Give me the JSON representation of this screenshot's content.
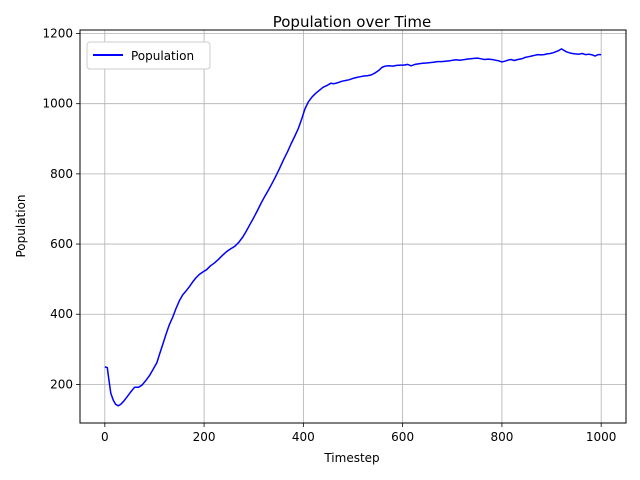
{
  "chart_data": {
    "type": "line",
    "title": "Population over Time",
    "xlabel": "Timestep",
    "ylabel": "Population",
    "xlim": [
      -50,
      1050
    ],
    "ylim": [
      90,
      1210
    ],
    "xticks": [
      0,
      200,
      400,
      600,
      800,
      1000
    ],
    "yticks": [
      200,
      400,
      600,
      800,
      1000,
      1200
    ],
    "grid": true,
    "legend_position": "top-left",
    "series": [
      {
        "name": "Population",
        "color": "#0000ff",
        "points": [
          [
            0,
            250
          ],
          [
            5,
            248
          ],
          [
            8,
            215
          ],
          [
            12,
            175
          ],
          [
            17,
            155
          ],
          [
            22,
            143
          ],
          [
            27,
            139
          ],
          [
            32,
            143
          ],
          [
            38,
            152
          ],
          [
            45,
            165
          ],
          [
            52,
            178
          ],
          [
            60,
            192
          ],
          [
            68,
            192
          ],
          [
            75,
            198
          ],
          [
            82,
            210
          ],
          [
            90,
            225
          ],
          [
            98,
            245
          ],
          [
            105,
            262
          ],
          [
            110,
            285
          ],
          [
            117,
            315
          ],
          [
            123,
            342
          ],
          [
            130,
            370
          ],
          [
            137,
            392
          ],
          [
            143,
            415
          ],
          [
            150,
            438
          ],
          [
            157,
            455
          ],
          [
            163,
            465
          ],
          [
            170,
            478
          ],
          [
            177,
            492
          ],
          [
            183,
            503
          ],
          [
            190,
            513
          ],
          [
            197,
            520
          ],
          [
            205,
            527
          ],
          [
            213,
            538
          ],
          [
            220,
            545
          ],
          [
            228,
            555
          ],
          [
            237,
            568
          ],
          [
            245,
            578
          ],
          [
            253,
            586
          ],
          [
            262,
            594
          ],
          [
            270,
            605
          ],
          [
            278,
            620
          ],
          [
            285,
            637
          ],
          [
            292,
            655
          ],
          [
            300,
            675
          ],
          [
            308,
            697
          ],
          [
            315,
            717
          ],
          [
            322,
            735
          ],
          [
            330,
            755
          ],
          [
            337,
            773
          ],
          [
            345,
            795
          ],
          [
            352,
            815
          ],
          [
            360,
            840
          ],
          [
            368,
            863
          ],
          [
            375,
            885
          ],
          [
            382,
            905
          ],
          [
            390,
            930
          ],
          [
            397,
            958
          ],
          [
            403,
            985
          ],
          [
            410,
            1005
          ],
          [
            418,
            1020
          ],
          [
            425,
            1030
          ],
          [
            432,
            1038
          ],
          [
            440,
            1047
          ],
          [
            448,
            1052
          ],
          [
            455,
            1058
          ],
          [
            462,
            1057
          ],
          [
            470,
            1060
          ],
          [
            478,
            1064
          ],
          [
            485,
            1066
          ],
          [
            492,
            1068
          ],
          [
            500,
            1072
          ],
          [
            508,
            1075
          ],
          [
            515,
            1077
          ],
          [
            522,
            1079
          ],
          [
            530,
            1080
          ],
          [
            537,
            1082
          ],
          [
            545,
            1088
          ],
          [
            552,
            1095
          ],
          [
            558,
            1103
          ],
          [
            565,
            1107
          ],
          [
            572,
            1108
          ],
          [
            580,
            1107
          ],
          [
            588,
            1109
          ],
          [
            596,
            1110
          ],
          [
            603,
            1110
          ],
          [
            610,
            1112
          ],
          [
            617,
            1108
          ],
          [
            625,
            1112
          ],
          [
            633,
            1114
          ],
          [
            640,
            1115
          ],
          [
            648,
            1116
          ],
          [
            655,
            1117
          ],
          [
            662,
            1118
          ],
          [
            670,
            1120
          ],
          [
            678,
            1120
          ],
          [
            686,
            1121
          ],
          [
            694,
            1122
          ],
          [
            701,
            1124
          ],
          [
            708,
            1125
          ],
          [
            715,
            1124
          ],
          [
            722,
            1125
          ],
          [
            730,
            1127
          ],
          [
            737,
            1128
          ],
          [
            744,
            1129
          ],
          [
            751,
            1130
          ],
          [
            758,
            1128
          ],
          [
            765,
            1126
          ],
          [
            772,
            1127
          ],
          [
            780,
            1126
          ],
          [
            787,
            1124
          ],
          [
            794,
            1122
          ],
          [
            800,
            1119
          ],
          [
            806,
            1121
          ],
          [
            812,
            1124
          ],
          [
            818,
            1126
          ],
          [
            825,
            1123
          ],
          [
            832,
            1126
          ],
          [
            840,
            1128
          ],
          [
            847,
            1132
          ],
          [
            854,
            1134
          ],
          [
            860,
            1136
          ],
          [
            866,
            1138
          ],
          [
            872,
            1140
          ],
          [
            878,
            1139
          ],
          [
            885,
            1140
          ],
          [
            891,
            1142
          ],
          [
            897,
            1143
          ],
          [
            903,
            1145
          ],
          [
            910,
            1149
          ],
          [
            915,
            1152
          ],
          [
            920,
            1156
          ],
          [
            925,
            1152
          ],
          [
            930,
            1148
          ],
          [
            936,
            1145
          ],
          [
            942,
            1143
          ],
          [
            948,
            1142
          ],
          [
            955,
            1141
          ],
          [
            962,
            1143
          ],
          [
            968,
            1140
          ],
          [
            975,
            1141
          ],
          [
            982,
            1139
          ],
          [
            988,
            1136
          ],
          [
            994,
            1140
          ],
          [
            1000,
            1140
          ]
        ]
      }
    ]
  }
}
